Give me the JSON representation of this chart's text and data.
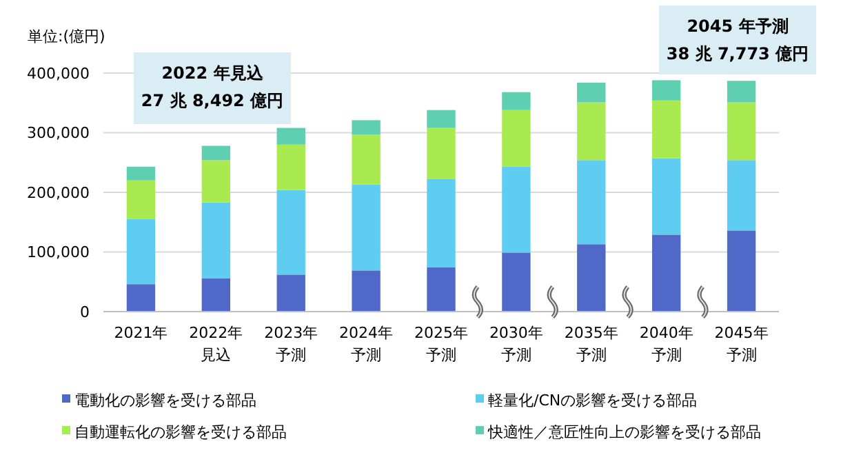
{
  "chart_data": {
    "type": "bar",
    "stacked": true,
    "ylabel": "単位:(億円)",
    "categories": [
      "2021年",
      "2022年見込",
      "2023年予測",
      "2024年予測",
      "2025年予測",
      "2030年予測",
      "2035年予測",
      "2040年予測",
      "2045年予測"
    ],
    "series": [
      {
        "name": "電動化の影響を受ける部品",
        "color": "#5068c8",
        "values": [
          46000,
          56000,
          62000,
          69000,
          74000,
          99000,
          113000,
          129000,
          136000
        ]
      },
      {
        "name": "軽量化/CNの影響を受ける部品",
        "color": "#5fccf2",
        "values": [
          109000,
          127000,
          142000,
          144000,
          148000,
          144000,
          141000,
          128000,
          118000
        ]
      },
      {
        "name": "自動運転化の影響を受ける部品",
        "color": "#a8ea50",
        "values": [
          65000,
          71000,
          76000,
          84000,
          86000,
          95000,
          97000,
          97000,
          97000
        ]
      },
      {
        "name": "快適性／意匠性向上の影響を受ける部品",
        "color": "#5ecfb0",
        "values": [
          23000,
          24000,
          28000,
          24000,
          30000,
          30000,
          33000,
          34000,
          36000
        ]
      }
    ],
    "ylim": [
      0,
      400000
    ],
    "yticks": [
      {
        "value": 0,
        "label": "0"
      },
      {
        "value": 100000,
        "label": "100,000"
      },
      {
        "value": 200000,
        "label": "200,000"
      },
      {
        "value": 300000,
        "label": "300,000"
      },
      {
        "value": 400000,
        "label": "400,000"
      }
    ],
    "grid": "y",
    "legend": "bottom",
    "annotations": [
      "2022 年見込\n27 兆 8,492 億円",
      "2045 年予測\n38 兆 7,773 億円"
    ]
  }
}
